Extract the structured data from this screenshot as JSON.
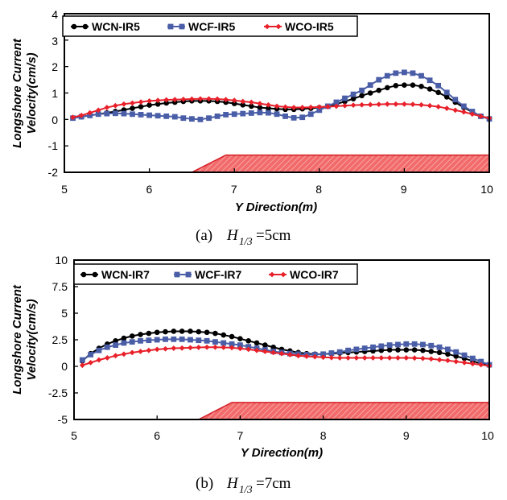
{
  "chart_data": [
    {
      "type": "line",
      "panel_caption": {
        "label": "(a)",
        "var": "H",
        "sub": "1/3",
        "eq": "=5cm"
      },
      "xlabel": "Y Direction(m)",
      "ylabel_line1": "Longshore Current",
      "ylabel_line2": "Velocity(cm/s)",
      "xlim": [
        5,
        10
      ],
      "ylim": [
        -2,
        4
      ],
      "xticks": [
        5,
        6,
        7,
        8,
        9,
        10
      ],
      "xtick_labels": [
        "5",
        "6",
        "7",
        "8",
        "9",
        "10"
      ],
      "yticks": [
        -2,
        -1,
        0,
        1,
        2,
        3,
        4
      ],
      "ytick_labels": [
        "-2",
        "-1",
        "0",
        "1",
        "2",
        "3",
        "4"
      ],
      "structure": {
        "x": [
          6.5,
          6.9,
          10
        ],
        "y_top": -1.35,
        "y_bottom": -2,
        "color": "#f26a6a"
      },
      "x": [
        5.1,
        5.2,
        5.3,
        5.4,
        5.5,
        5.6,
        5.7,
        5.8,
        5.9,
        6.0,
        6.1,
        6.2,
        6.3,
        6.4,
        6.5,
        6.6,
        6.7,
        6.8,
        6.9,
        7.0,
        7.1,
        7.2,
        7.3,
        7.4,
        7.5,
        7.6,
        7.7,
        7.8,
        7.9,
        8.0,
        8.1,
        8.2,
        8.3,
        8.4,
        8.5,
        8.6,
        8.7,
        8.8,
        8.9,
        9.0,
        9.1,
        9.2,
        9.3,
        9.4,
        9.5,
        9.6,
        9.7,
        9.8,
        9.9,
        10.0
      ],
      "series": [
        {
          "name": "WCN-IR5",
          "color": "#000000",
          "marker": "circle",
          "values": [
            0.05,
            0.1,
            0.15,
            0.2,
            0.25,
            0.3,
            0.36,
            0.42,
            0.48,
            0.54,
            0.58,
            0.62,
            0.65,
            0.68,
            0.7,
            0.7,
            0.7,
            0.68,
            0.65,
            0.6,
            0.55,
            0.5,
            0.45,
            0.42,
            0.4,
            0.38,
            0.38,
            0.4,
            0.42,
            0.45,
            0.5,
            0.58,
            0.68,
            0.78,
            0.9,
            1.0,
            1.1,
            1.2,
            1.28,
            1.3,
            1.3,
            1.25,
            1.15,
            1.02,
            0.85,
            0.65,
            0.45,
            0.28,
            0.12,
            0.02
          ]
        },
        {
          "name": "WCF-IR5",
          "color": "#4a5ea8",
          "marker": "square",
          "values": [
            0.05,
            0.1,
            0.15,
            0.2,
            0.22,
            0.23,
            0.22,
            0.2,
            0.18,
            0.16,
            0.14,
            0.12,
            0.1,
            0.05,
            0.02,
            0.0,
            0.05,
            0.12,
            0.18,
            0.2,
            0.22,
            0.24,
            0.26,
            0.25,
            0.2,
            0.12,
            0.06,
            0.08,
            0.2,
            0.35,
            0.5,
            0.65,
            0.8,
            0.95,
            1.1,
            1.3,
            1.5,
            1.65,
            1.75,
            1.78,
            1.75,
            1.65,
            1.48,
            1.28,
            1.02,
            0.75,
            0.5,
            0.3,
            0.12,
            0.02
          ]
        },
        {
          "name": "WCO-IR5",
          "color": "#e8202a",
          "marker": "diamond",
          "values": [
            0.08,
            0.15,
            0.25,
            0.35,
            0.45,
            0.52,
            0.58,
            0.62,
            0.66,
            0.7,
            0.72,
            0.74,
            0.75,
            0.76,
            0.77,
            0.78,
            0.78,
            0.77,
            0.75,
            0.72,
            0.68,
            0.65,
            0.6,
            0.55,
            0.5,
            0.47,
            0.45,
            0.45,
            0.46,
            0.47,
            0.48,
            0.5,
            0.52,
            0.54,
            0.55,
            0.56,
            0.57,
            0.58,
            0.58,
            0.58,
            0.57,
            0.55,
            0.52,
            0.48,
            0.42,
            0.35,
            0.28,
            0.2,
            0.12,
            0.05
          ]
        }
      ]
    },
    {
      "type": "line",
      "panel_caption": {
        "label": "(b)",
        "var": "H",
        "sub": "1/3",
        "eq": "=7cm"
      },
      "xlabel": "Y Direction(m)",
      "ylabel_line1": "Longshore Current",
      "ylabel_line2": "Velocity(cm/s)",
      "xlim": [
        5,
        10
      ],
      "ylim": [
        -5,
        10
      ],
      "xticks": [
        5,
        6,
        7,
        8,
        9,
        10
      ],
      "xtick_labels": [
        "5",
        "6",
        "7",
        "8",
        "9",
        "10"
      ],
      "yticks": [
        -5,
        -2.5,
        0,
        2.5,
        5,
        7.5,
        10
      ],
      "ytick_labels": [
        "-5",
        "-2.5",
        "0",
        "2.5",
        "5",
        "7.5",
        "10"
      ],
      "structure": {
        "x": [
          6.5,
          6.9,
          10
        ],
        "y_top": -3.4,
        "y_bottom": -5,
        "color": "#f26a6a"
      },
      "x": [
        5.1,
        5.2,
        5.3,
        5.4,
        5.5,
        5.6,
        5.7,
        5.8,
        5.9,
        6.0,
        6.1,
        6.2,
        6.3,
        6.4,
        6.5,
        6.6,
        6.7,
        6.8,
        6.9,
        7.0,
        7.1,
        7.2,
        7.3,
        7.4,
        7.5,
        7.6,
        7.7,
        7.8,
        7.9,
        8.0,
        8.1,
        8.2,
        8.3,
        8.4,
        8.5,
        8.6,
        8.7,
        8.8,
        8.9,
        9.0,
        9.1,
        9.2,
        9.3,
        9.4,
        9.5,
        9.6,
        9.7,
        9.8,
        9.9,
        10.0
      ],
      "series": [
        {
          "name": "WCN-IR7",
          "color": "#000000",
          "marker": "circle",
          "values": [
            0.5,
            1.2,
            1.7,
            2.1,
            2.4,
            2.65,
            2.85,
            3.0,
            3.1,
            3.2,
            3.25,
            3.3,
            3.3,
            3.3,
            3.25,
            3.2,
            3.1,
            2.95,
            2.8,
            2.6,
            2.4,
            2.2,
            2.0,
            1.8,
            1.6,
            1.45,
            1.3,
            1.2,
            1.15,
            1.15,
            1.2,
            1.25,
            1.3,
            1.35,
            1.4,
            1.45,
            1.5,
            1.55,
            1.55,
            1.55,
            1.55,
            1.5,
            1.4,
            1.3,
            1.15,
            0.95,
            0.75,
            0.5,
            0.25,
            0.1
          ]
        },
        {
          "name": "WCF-IR7",
          "color": "#4a5ea8",
          "marker": "square",
          "values": [
            0.6,
            1.1,
            1.5,
            1.8,
            2.0,
            2.2,
            2.3,
            2.4,
            2.45,
            2.5,
            2.55,
            2.55,
            2.55,
            2.5,
            2.45,
            2.4,
            2.3,
            2.2,
            2.1,
            2.0,
            1.85,
            1.7,
            1.55,
            1.4,
            1.3,
            1.2,
            1.15,
            1.1,
            1.1,
            1.15,
            1.25,
            1.35,
            1.5,
            1.6,
            1.7,
            1.8,
            1.9,
            2.0,
            2.05,
            2.1,
            2.1,
            2.05,
            1.95,
            1.8,
            1.6,
            1.35,
            1.05,
            0.75,
            0.45,
            0.15
          ]
        },
        {
          "name": "WCO-IR7",
          "color": "#e8202a",
          "marker": "diamond",
          "values": [
            0.1,
            0.35,
            0.6,
            0.8,
            1.0,
            1.15,
            1.3,
            1.4,
            1.5,
            1.6,
            1.65,
            1.7,
            1.72,
            1.75,
            1.78,
            1.8,
            1.8,
            1.78,
            1.75,
            1.68,
            1.6,
            1.5,
            1.4,
            1.3,
            1.2,
            1.1,
            1.0,
            0.95,
            0.9,
            0.85,
            0.82,
            0.8,
            0.8,
            0.8,
            0.8,
            0.8,
            0.8,
            0.8,
            0.8,
            0.8,
            0.78,
            0.75,
            0.7,
            0.62,
            0.55,
            0.45,
            0.35,
            0.25,
            0.15,
            0.05
          ]
        }
      ]
    }
  ]
}
